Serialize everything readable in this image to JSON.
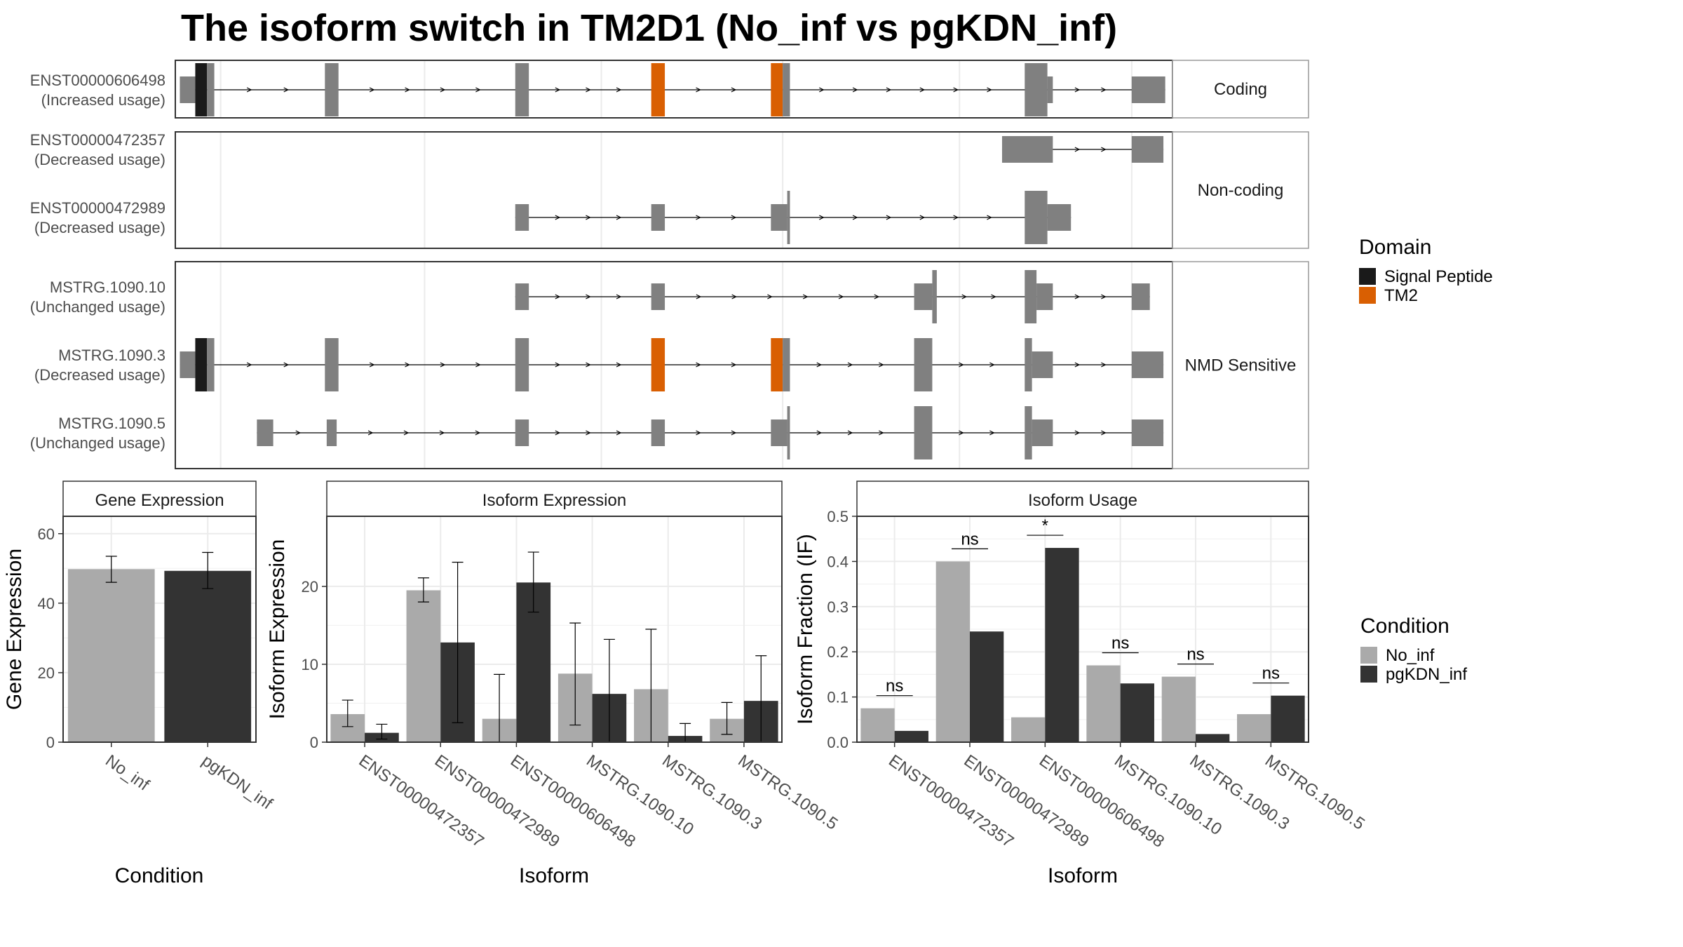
{
  "title": "The isoform switch in TM2D1 (No_inf vs pgKDN_inf)",
  "colors": {
    "exon": "#808080",
    "signal_peptide": "#1a1a1a",
    "tm2": "#d95f02",
    "no_inf": "#aaaaaa",
    "pgkdn_inf": "#333333",
    "grid": "#ebebeb",
    "strip_fill": "#ffffff"
  },
  "domain_legend": {
    "title": "Domain",
    "items": [
      {
        "label": "Signal Peptide",
        "color": "#1a1a1a"
      },
      {
        "label": "TM2",
        "color": "#d95f02"
      }
    ]
  },
  "condition_legend": {
    "title": "Condition",
    "items": [
      {
        "label": "No_inf",
        "color": "#aaaaaa"
      },
      {
        "label": "pgKDN_inf",
        "color": "#333333"
      }
    ]
  },
  "structure": {
    "panels": [
      {
        "strip": "Coding",
        "isoforms": [
          {
            "name": "ENST00000606498",
            "usage": "(Increased usage)",
            "exons": [
              [
                0.5,
                2.2,
                "half"
              ],
              [
                2.2,
                3.5,
                "sp"
              ],
              [
                3.5,
                4.3,
                "full"
              ],
              [
                16.5,
                18.0,
                "full"
              ],
              [
                37.5,
                39.0,
                "full"
              ],
              [
                52.5,
                54.0,
                "tm2"
              ],
              [
                65.7,
                67.0,
                "tm2"
              ],
              [
                67.0,
                67.8,
                "full"
              ],
              [
                93.7,
                96.2,
                "full"
              ],
              [
                96.2,
                96.8,
                "half"
              ],
              [
                105.5,
                109.2,
                "half"
              ]
            ]
          },
          {
            "name": "",
            "usage": "",
            "exons": []
          }
        ]
      },
      {
        "strip": "Non-coding",
        "isoforms": [
          {
            "name": "ENST00000472357",
            "usage": "(Decreased usage)",
            "exons": [
              [
                91.2,
                96.8,
                "half"
              ],
              [
                105.5,
                109.0,
                "half"
              ]
            ]
          },
          {
            "name": "ENST00000472989",
            "usage": "(Decreased usage)",
            "exons": [
              [
                37.5,
                39.0,
                "half"
              ],
              [
                52.5,
                54.0,
                "half"
              ],
              [
                65.7,
                67.5,
                "half"
              ],
              [
                67.5,
                67.8,
                "full"
              ],
              [
                93.7,
                96.2,
                "full"
              ],
              [
                96.2,
                98.8,
                "half"
              ]
            ]
          }
        ]
      },
      {
        "strip": "NMD Sensitive",
        "isoforms": [
          {
            "name": "MSTRG.1090.10",
            "usage": "(Unchanged usage)",
            "exons": [
              [
                37.5,
                39.0,
                "half"
              ],
              [
                52.5,
                54.0,
                "half"
              ],
              [
                81.5,
                83.5,
                "half"
              ],
              [
                83.5,
                84.0,
                "full"
              ],
              [
                93.7,
                95.0,
                "full"
              ],
              [
                95.0,
                96.8,
                "half"
              ],
              [
                105.5,
                107.5,
                "half"
              ]
            ]
          },
          {
            "name": "MSTRG.1090.3",
            "usage": "(Decreased usage)",
            "exons": [
              [
                0.5,
                2.2,
                "half"
              ],
              [
                2.2,
                3.5,
                "sp"
              ],
              [
                3.5,
                4.3,
                "full"
              ],
              [
                16.5,
                18.0,
                "full"
              ],
              [
                37.5,
                39.0,
                "full"
              ],
              [
                52.5,
                54.0,
                "tm2"
              ],
              [
                65.7,
                67.0,
                "tm2"
              ],
              [
                67.0,
                67.8,
                "full"
              ],
              [
                81.5,
                83.5,
                "full"
              ],
              [
                93.7,
                94.5,
                "full"
              ],
              [
                94.5,
                96.8,
                "half"
              ],
              [
                105.5,
                109.0,
                "half"
              ]
            ]
          },
          {
            "name": "MSTRG.1090.5",
            "usage": "(Unchanged usage)",
            "exons": [
              [
                9.0,
                10.8,
                "half"
              ],
              [
                16.7,
                17.8,
                "half"
              ],
              [
                37.5,
                39.0,
                "half"
              ],
              [
                52.5,
                54.0,
                "half"
              ],
              [
                65.7,
                67.5,
                "half"
              ],
              [
                67.5,
                67.8,
                "full"
              ],
              [
                81.5,
                83.5,
                "full"
              ],
              [
                93.7,
                94.5,
                "full"
              ],
              [
                94.5,
                96.8,
                "half"
              ],
              [
                105.5,
                109.0,
                "half"
              ]
            ]
          }
        ]
      }
    ]
  },
  "chart_data": [
    {
      "type": "bar",
      "title": "Gene Expression",
      "xlabel": "Condition",
      "ylabel": "Gene Expression",
      "ylim": [
        0,
        65
      ],
      "yticks": [
        0,
        20,
        40,
        60
      ],
      "categories": [
        "No_inf",
        "pgKDN_inf"
      ],
      "series": [
        {
          "name": "No_inf",
          "values": [
            49.8,
            49.3
          ],
          "errors": [
            [
              46.0,
              53.5
            ],
            [
              44.2,
              54.6
            ]
          ]
        }
      ]
    },
    {
      "type": "bar",
      "title": "Isoform Expression",
      "xlabel": "Isoform",
      "ylabel": "Isoform Expression",
      "ylim": [
        0,
        29
      ],
      "yticks": [
        0,
        10,
        20
      ],
      "categories": [
        "ENST00000472357",
        "ENST00000472989",
        "ENST00000606498",
        "MSTRG.1090.10",
        "MSTRG.1090.3",
        "MSTRG.1090.5"
      ],
      "series": [
        {
          "name": "No_inf",
          "values": [
            3.6,
            19.5,
            3.0,
            8.8,
            6.8,
            3.0
          ],
          "errors": [
            [
              2.0,
              5.4
            ],
            [
              18.0,
              21.1
            ],
            [
              0.0,
              8.7
            ],
            [
              2.2,
              15.3
            ],
            [
              0.0,
              14.5
            ],
            [
              1.0,
              5.1
            ]
          ]
        },
        {
          "name": "pgKDN_inf",
          "values": [
            1.2,
            12.8,
            20.5,
            6.2,
            0.8,
            5.3
          ],
          "errors": [
            [
              0.4,
              2.3
            ],
            [
              2.5,
              23.1
            ],
            [
              16.7,
              24.4
            ],
            [
              0.0,
              13.2
            ],
            [
              0.0,
              2.4
            ],
            [
              0.0,
              11.1
            ]
          ]
        }
      ]
    },
    {
      "type": "bar",
      "title": "Isoform Usage",
      "xlabel": "Isoform",
      "ylabel": "Isoform Fraction (IF)",
      "ylim": [
        0,
        0.5
      ],
      "yticks": [
        "0.0",
        "0.1",
        "0.2",
        "0.3",
        "0.4",
        "0.5"
      ],
      "categories": [
        "ENST00000472357",
        "ENST00000472989",
        "ENST00000606498",
        "MSTRG.1090.10",
        "MSTRG.1090.3",
        "MSTRG.1090.5"
      ],
      "series": [
        {
          "name": "No_inf",
          "values": [
            0.075,
            0.4,
            0.055,
            0.17,
            0.145,
            0.062
          ]
        },
        {
          "name": "pgKDN_inf",
          "values": [
            0.025,
            0.245,
            0.43,
            0.13,
            0.018,
            0.103
          ]
        }
      ],
      "significance": [
        "ns",
        "ns",
        "*",
        "ns",
        "ns",
        "ns"
      ]
    }
  ]
}
